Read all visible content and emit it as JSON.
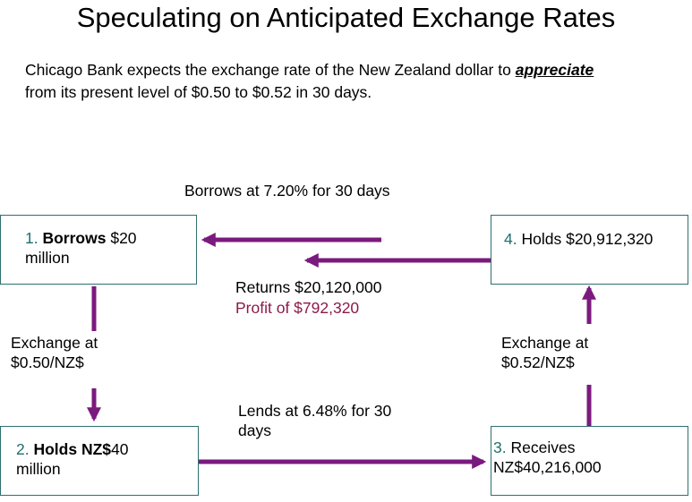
{
  "title": "Speculating on Anticipated Exchange Rates",
  "intro": {
    "before": "Chicago Bank expects the exchange rate of the New Zealand dollar to",
    "emphasis": "appreciate",
    "after": "from its present level of $0.50 to $0.52 in 30 days."
  },
  "steps": [
    {
      "number": "1.",
      "bold": "Borrows",
      "rest_line1": "$20",
      "rest_line2": "million"
    },
    {
      "number": "2.",
      "bold": "Holds NZ$",
      "rest_line1": "40",
      "rest_line2": "million"
    },
    {
      "number": "3.",
      "line1": "Receives",
      "line2": "NZ$40,216,000"
    },
    {
      "number": "4.",
      "line1": "Holds $20,912,320"
    }
  ],
  "labels": {
    "borrows_rate": "Borrows at 7.20% for 30 days",
    "returns": "Returns $20,120,000",
    "profit": "Profit of $792,320",
    "exchange_left_1": "Exchange at",
    "exchange_left_2": "$0.50/NZ$",
    "exchange_right_1": "Exchange at",
    "exchange_right_2": "$0.52/NZ$",
    "lends_1": "Lends at 6.48% for 30",
    "lends_2": "days"
  },
  "colors": {
    "arrow": "#7b1a7e",
    "box_border": "#2e6f70",
    "step_number": "#1f6f6e",
    "profit": "#8b1a4a"
  }
}
